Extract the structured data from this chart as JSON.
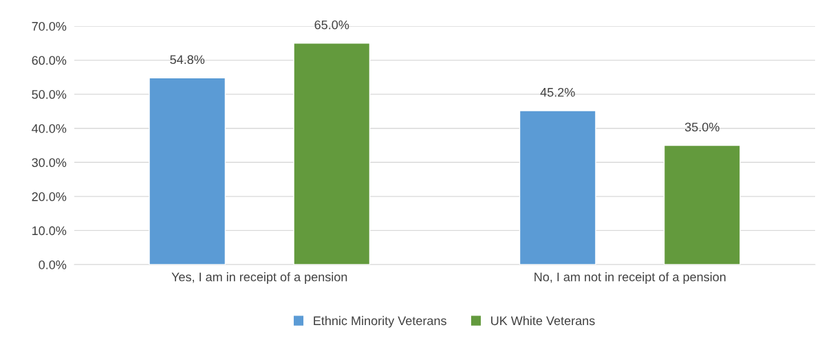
{
  "chart_data": {
    "type": "bar",
    "categories": [
      "Yes, I am in receipt of a pension",
      "No, I am not in receipt of a pension"
    ],
    "series": [
      {
        "name": "Ethnic Minority Veterans",
        "color": "#5b9bd5",
        "values": [
          54.8,
          45.2
        ],
        "value_labels": [
          "54.8%",
          "45.2%"
        ]
      },
      {
        "name": "UK White Veterans",
        "color": "#639a3d",
        "values": [
          65.0,
          35.0
        ],
        "value_labels": [
          "65.0%",
          "35.0%"
        ]
      }
    ],
    "ylim": [
      0,
      70
    ],
    "yticks": [
      {
        "value": 0,
        "label": "0.0%"
      },
      {
        "value": 10,
        "label": "10.0%"
      },
      {
        "value": 20,
        "label": "20.0%"
      },
      {
        "value": 30,
        "label": "30.0%"
      },
      {
        "value": 40,
        "label": "40.0%"
      },
      {
        "value": 50,
        "label": "50.0%"
      },
      {
        "value": 60,
        "label": "60.0%"
      },
      {
        "value": 70,
        "label": "70.0%"
      }
    ],
    "grid": "y",
    "legend": "bottom"
  }
}
